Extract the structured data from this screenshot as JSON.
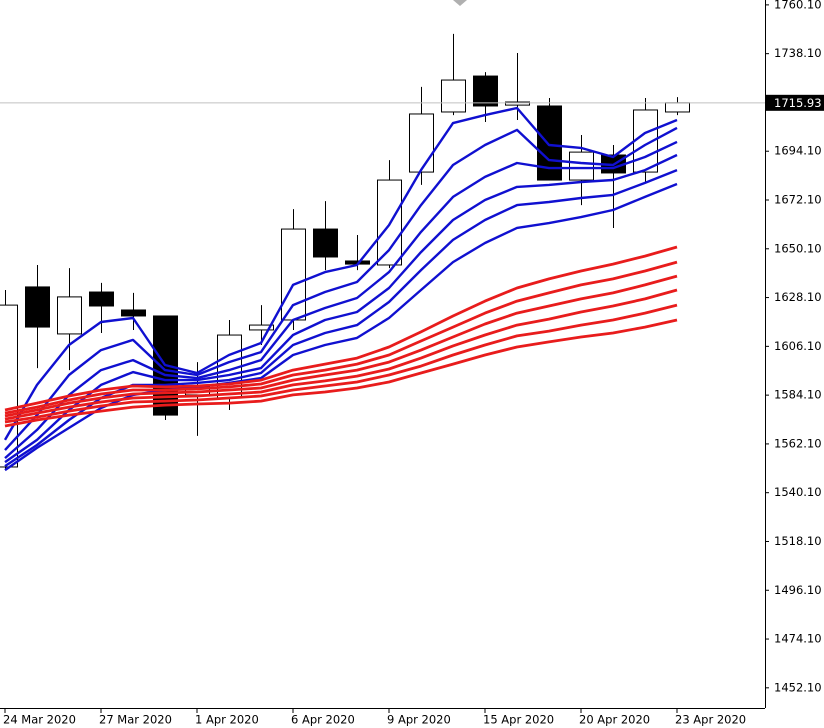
{
  "chart_data": {
    "type": "candlestick",
    "x": [
      "24 Mar 2020",
      null,
      null,
      "27 Mar 2020",
      null,
      null,
      "1 Apr 2020",
      null,
      null,
      "6 Apr 2020",
      null,
      null,
      "9 Apr 2020",
      null,
      null,
      "15 Apr 2020",
      null,
      null,
      "20 Apr 2020",
      null,
      null,
      "23 Apr 2020"
    ],
    "open": [
      1551.7,
      1632.9,
      1611.7,
      1630.6,
      1622.5,
      1619.8,
      1584.2,
      1582.8,
      1613.5,
      1618.0,
      1659.0,
      1644.6,
      1642.8,
      1684.7,
      1711.8,
      1728.0,
      1714.9,
      1714.5,
      1681.1,
      1692.4,
      1684.7,
      1711.8
    ],
    "high": [
      1631.5,
      1642.8,
      1641.4,
      1634.7,
      1630.2,
      1619.8,
      1599.0,
      1618.0,
      1624.7,
      1668.0,
      1671.6,
      1656.3,
      1690.1,
      1723.1,
      1747.0,
      1729.8,
      1738.4,
      1718.1,
      1701.4,
      1696.9,
      1718.1,
      1718.5
    ],
    "low": [
      1550.3,
      1596.3,
      1595.4,
      1612.1,
      1613.5,
      1572.9,
      1565.7,
      1577.4,
      1606.7,
      1613.5,
      1640.5,
      1640.5,
      1641.4,
      1678.9,
      1710.4,
      1707.3,
      1708.2,
      1681.1,
      1669.8,
      1659.5,
      1680.2,
      1710.4
    ],
    "close": [
      1624.7,
      1614.8,
      1628.4,
      1624.3,
      1619.8,
      1575.1,
      1587.8,
      1611.2,
      1615.7,
      1659.0,
      1646.4,
      1643.2,
      1681.1,
      1710.9,
      1726.2,
      1714.5,
      1716.3,
      1681.1,
      1693.7,
      1684.3,
      1712.7,
      1715.93
    ],
    "up_color": "#ffffff",
    "down_color": "#000000",
    "series": [
      {
        "color": "#1010d0",
        "values": [
          1563.9,
          1588.7,
          1606.7,
          1617.1,
          1618.9,
          1597.7,
          1594.1,
          1602.2,
          1607.6,
          1633.8,
          1639.6,
          1642.8,
          1660.8,
          1685.6,
          1706.8,
          1710.4,
          1713.6,
          1696.9,
          1695.6,
          1691.5,
          1702.3,
          1708.2
        ]
      },
      {
        "color": "#1010d0",
        "values": [
          1559.3,
          1575.1,
          1593.2,
          1604.4,
          1609.0,
          1595.4,
          1593.2,
          1599.0,
          1603.5,
          1624.7,
          1630.6,
          1635.1,
          1649.5,
          1669.8,
          1687.9,
          1696.9,
          1703.7,
          1690.1,
          1688.8,
          1687.9,
          1696.9,
          1704.6
        ]
      },
      {
        "color": "#1010d0",
        "values": [
          1555.7,
          1568.4,
          1584.2,
          1595.4,
          1599.9,
          1593.2,
          1591.8,
          1595.4,
          1599.9,
          1618.0,
          1623.4,
          1627.9,
          1639.6,
          1657.7,
          1673.5,
          1682.5,
          1688.8,
          1686.5,
          1686.5,
          1686.5,
          1691.5,
          1698.3
        ]
      },
      {
        "color": "#1010d0",
        "values": [
          1553.9,
          1563.9,
          1577.4,
          1588.7,
          1594.5,
          1590.9,
          1590.9,
          1593.2,
          1596.3,
          1611.2,
          1618.0,
          1621.6,
          1632.4,
          1648.6,
          1663.1,
          1672.1,
          1678.0,
          1678.9,
          1680.2,
          1681.1,
          1685.6,
          1692.4
        ]
      },
      {
        "color": "#1010d0",
        "values": [
          1552.1,
          1561.6,
          1572.9,
          1582.8,
          1588.7,
          1588.7,
          1589.6,
          1590.9,
          1594.1,
          1606.7,
          1612.1,
          1615.7,
          1626.1,
          1640.5,
          1654.1,
          1663.1,
          1669.8,
          1671.2,
          1673.0,
          1674.4,
          1679.8,
          1685.6
        ]
      },
      {
        "color": "#1010d0",
        "values": [
          1550.3,
          1560.3,
          1569.3,
          1578.3,
          1584.2,
          1586.4,
          1587.8,
          1589.6,
          1591.8,
          1602.2,
          1606.7,
          1609.9,
          1618.9,
          1631.5,
          1644.1,
          1652.7,
          1659.5,
          1661.7,
          1664.4,
          1667.6,
          1673.5,
          1679.3
        ]
      },
      {
        "color": "#e81c1c",
        "values": [
          1577.4,
          1580.5,
          1583.7,
          1586.4,
          1588.2,
          1587.8,
          1588.2,
          1589.1,
          1590.9,
          1595.4,
          1598.1,
          1600.8,
          1605.8,
          1612.6,
          1619.8,
          1626.5,
          1632.4,
          1636.5,
          1640.1,
          1643.2,
          1646.8,
          1650.9
        ]
      },
      {
        "color": "#e81c1c",
        "values": [
          1576.0,
          1578.7,
          1581.9,
          1584.6,
          1586.4,
          1586.4,
          1586.9,
          1587.8,
          1589.1,
          1593.2,
          1595.4,
          1598.1,
          1602.2,
          1608.5,
          1614.8,
          1621.1,
          1626.5,
          1630.2,
          1633.8,
          1636.5,
          1640.1,
          1644.1
        ]
      },
      {
        "color": "#e81c1c",
        "values": [
          1574.7,
          1577.4,
          1580.5,
          1582.8,
          1584.6,
          1585.1,
          1585.5,
          1586.4,
          1587.3,
          1590.9,
          1593.2,
          1595.4,
          1599.0,
          1604.4,
          1610.3,
          1616.2,
          1621.1,
          1624.3,
          1627.5,
          1630.2,
          1633.8,
          1637.8
        ]
      },
      {
        "color": "#e81c1c",
        "values": [
          1573.3,
          1576.0,
          1578.7,
          1581.0,
          1582.8,
          1583.3,
          1583.7,
          1584.6,
          1585.5,
          1588.7,
          1590.5,
          1592.7,
          1595.9,
          1600.8,
          1606.3,
          1611.2,
          1615.7,
          1618.4,
          1621.6,
          1624.3,
          1627.5,
          1631.5
        ]
      },
      {
        "color": "#e81c1c",
        "values": [
          1572.0,
          1574.2,
          1576.9,
          1579.2,
          1581.0,
          1581.4,
          1581.9,
          1582.8,
          1583.7,
          1586.4,
          1588.2,
          1590.0,
          1593.2,
          1597.2,
          1602.2,
          1606.7,
          1610.8,
          1613.0,
          1615.7,
          1618.0,
          1621.1,
          1624.7
        ]
      },
      {
        "color": "#e81c1c",
        "values": [
          1570.2,
          1572.9,
          1575.1,
          1576.9,
          1578.7,
          1579.6,
          1580.1,
          1580.5,
          1581.4,
          1584.2,
          1585.5,
          1587.3,
          1590.0,
          1594.1,
          1598.1,
          1602.2,
          1605.8,
          1608.1,
          1610.3,
          1612.1,
          1614.8,
          1618.0
        ]
      }
    ],
    "ylim": [
      1443.0,
      1762.3
    ],
    "yticks": [
      {
        "value": 1760.1,
        "label": "1760.10"
      },
      {
        "value": 1738.1,
        "label": "1738.10"
      },
      {
        "value": 1694.1,
        "label": "1694.10"
      },
      {
        "value": 1672.1,
        "label": "1672.10"
      },
      {
        "value": 1650.1,
        "label": "1650.10"
      },
      {
        "value": 1628.1,
        "label": "1628.10"
      },
      {
        "value": 1606.1,
        "label": "1606.10"
      },
      {
        "value": 1584.1,
        "label": "1584.10"
      },
      {
        "value": 1562.1,
        "label": "1562.10"
      },
      {
        "value": 1540.1,
        "label": "1540.10"
      },
      {
        "value": 1518.1,
        "label": "1518.10"
      },
      {
        "value": 1496.1,
        "label": "1496.10"
      },
      {
        "value": 1474.1,
        "label": "1474.10"
      },
      {
        "value": 1452.1,
        "label": "1452.10"
      }
    ],
    "last_price": 1715.93
  }
}
